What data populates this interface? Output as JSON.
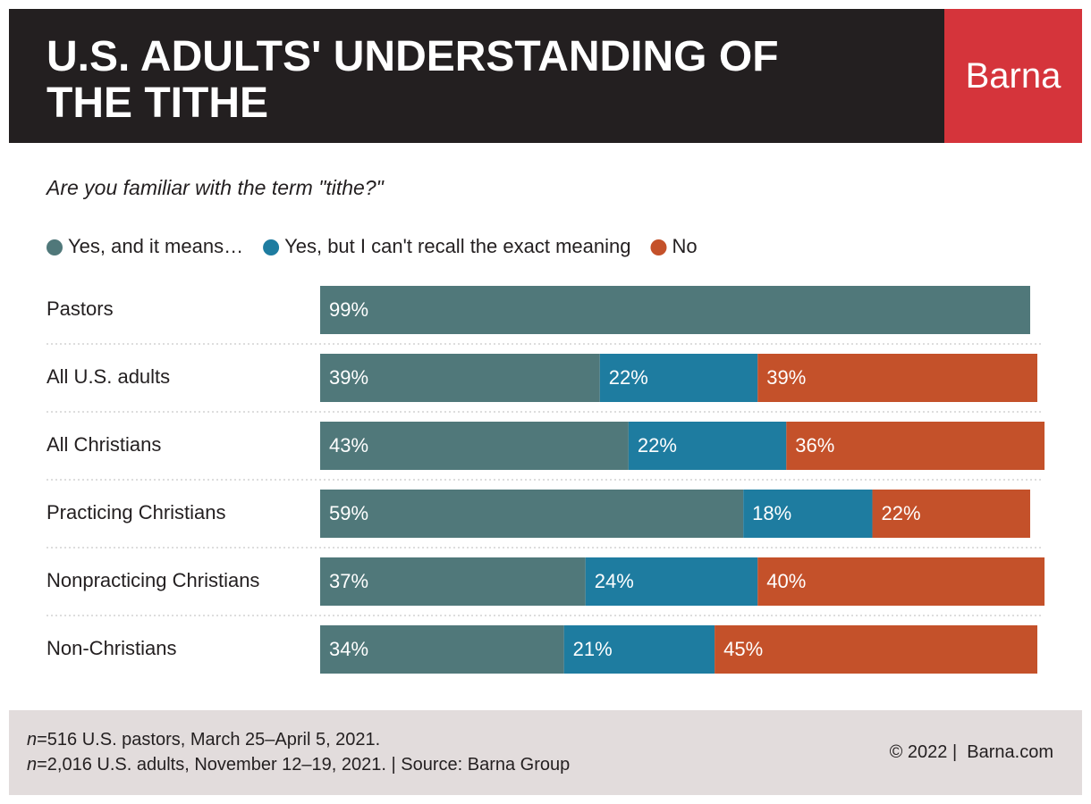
{
  "brand": "Barna",
  "chart_data": {
    "type": "stacked-bar-horizontal",
    "title": "U.S. ADULTS' UNDERSTANDING OF THE TITHE",
    "subtitle": "Are you familiar with the term \"tithe?\"",
    "categories": [
      "Pastors",
      "All U.S. adults",
      "All Christians",
      "Practicing Christians",
      "Nonpracticing Christians",
      "Non-Christians"
    ],
    "series": [
      {
        "name": "Yes, and it means…",
        "color": "#50787a",
        "values": [
          99,
          39,
          43,
          59,
          37,
          34
        ],
        "value_labels": [
          "99%",
          "39%",
          "43%",
          "59%",
          "37%",
          "34%"
        ]
      },
      {
        "name": "Yes, but I can't recall the exact meaning",
        "color": "#1e7ca0",
        "values": [
          null,
          22,
          22,
          18,
          24,
          21
        ],
        "value_labels": [
          null,
          "22%",
          "22%",
          "18%",
          "24%",
          "21%"
        ]
      },
      {
        "name": "No",
        "color": "#c4512a",
        "values": [
          null,
          39,
          36,
          22,
          40,
          45
        ],
        "value_labels": [
          null,
          "39%",
          "36%",
          "22%",
          "40%",
          "45%"
        ]
      }
    ]
  },
  "footer": {
    "notes": [
      {
        "prefix": "n",
        "text": "=516 U.S. pastors, March 25–April 5, 2021."
      },
      {
        "prefix": "n",
        "text": "=2,016 U.S. adults, November 12–19, 2021. | Source: Barna Group"
      }
    ],
    "credit": "© 2022 |  Barna.com"
  }
}
